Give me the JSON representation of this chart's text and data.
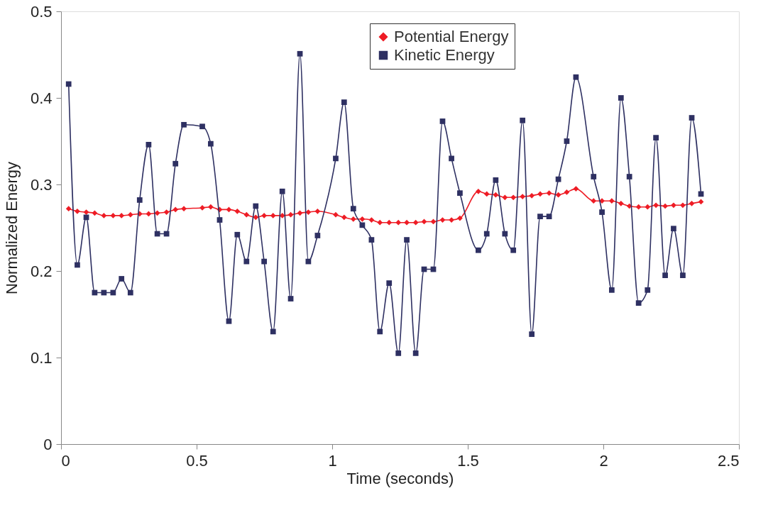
{
  "chart_data": {
    "type": "line",
    "xlabel": "Time (seconds)",
    "ylabel": "Normalized Energy",
    "x": [
      0.028,
      0.06,
      0.093,
      0.124,
      0.158,
      0.192,
      0.223,
      0.256,
      0.29,
      0.323,
      0.355,
      0.389,
      0.422,
      0.453,
      0.521,
      0.552,
      0.585,
      0.619,
      0.65,
      0.684,
      0.718,
      0.749,
      0.782,
      0.816,
      0.847,
      0.881,
      0.912,
      0.946,
      1.013,
      1.044,
      1.078,
      1.111,
      1.145,
      1.176,
      1.21,
      1.244,
      1.275,
      1.308,
      1.339,
      1.373,
      1.407,
      1.44,
      1.471,
      1.539,
      1.57,
      1.603,
      1.637,
      1.668,
      1.702,
      1.736,
      1.767,
      1.8,
      1.834,
      1.865,
      1.899,
      1.964,
      1.995,
      2.031,
      2.065,
      2.096,
      2.13,
      2.163,
      2.194,
      2.228,
      2.259,
      2.293,
      2.326,
      2.36
    ],
    "series": [
      {
        "name": "Potential Energy",
        "color": "#ee1c25",
        "marker": "diamond",
        "values": [
          0.272,
          0.269,
          0.268,
          0.267,
          0.264,
          0.264,
          0.264,
          0.265,
          0.266,
          0.266,
          0.267,
          0.268,
          0.271,
          0.272,
          0.273,
          0.274,
          0.271,
          0.271,
          0.269,
          0.265,
          0.262,
          0.264,
          0.264,
          0.264,
          0.265,
          0.267,
          0.268,
          0.269,
          0.265,
          0.262,
          0.26,
          0.26,
          0.259,
          0.256,
          0.256,
          0.256,
          0.256,
          0.256,
          0.257,
          0.257,
          0.259,
          0.259,
          0.261,
          0.292,
          0.289,
          0.288,
          0.285,
          0.285,
          0.286,
          0.287,
          0.289,
          0.29,
          0.288,
          0.291,
          0.295,
          0.281,
          0.281,
          0.281,
          0.278,
          0.275,
          0.274,
          0.274,
          0.276,
          0.275,
          0.276,
          0.276,
          0.278,
          0.28
        ]
      },
      {
        "name": "Kinetic Energy",
        "color": "#2e3062",
        "marker": "square",
        "values": [
          0.416,
          0.207,
          0.262,
          0.175,
          0.175,
          0.175,
          0.191,
          0.175,
          0.282,
          0.346,
          0.243,
          0.243,
          0.324,
          0.369,
          0.367,
          0.347,
          0.259,
          0.142,
          0.242,
          0.211,
          0.275,
          0.211,
          0.13,
          0.292,
          0.168,
          0.451,
          0.211,
          0.241,
          0.33,
          0.395,
          0.272,
          0.253,
          0.236,
          0.13,
          0.186,
          0.105,
          0.236,
          0.105,
          0.202,
          0.202,
          0.373,
          0.33,
          0.29,
          0.224,
          0.243,
          0.305,
          0.243,
          0.224,
          0.374,
          0.127,
          0.263,
          0.263,
          0.306,
          0.35,
          0.424,
          0.309,
          0.268,
          0.178,
          0.4,
          0.309,
          0.163,
          0.178,
          0.354,
          0.195,
          0.249,
          0.195,
          0.377,
          0.289
        ]
      }
    ],
    "xlim": [
      0,
      2.5
    ],
    "xticks": [
      0,
      0.5,
      1,
      1.5,
      2,
      2.5
    ],
    "ylim": [
      0,
      0.5
    ],
    "yticks": [
      0,
      0.1,
      0.2,
      0.3,
      0.4,
      0.5
    ],
    "grid": false,
    "legend": "top right",
    "line_style": "solid"
  }
}
